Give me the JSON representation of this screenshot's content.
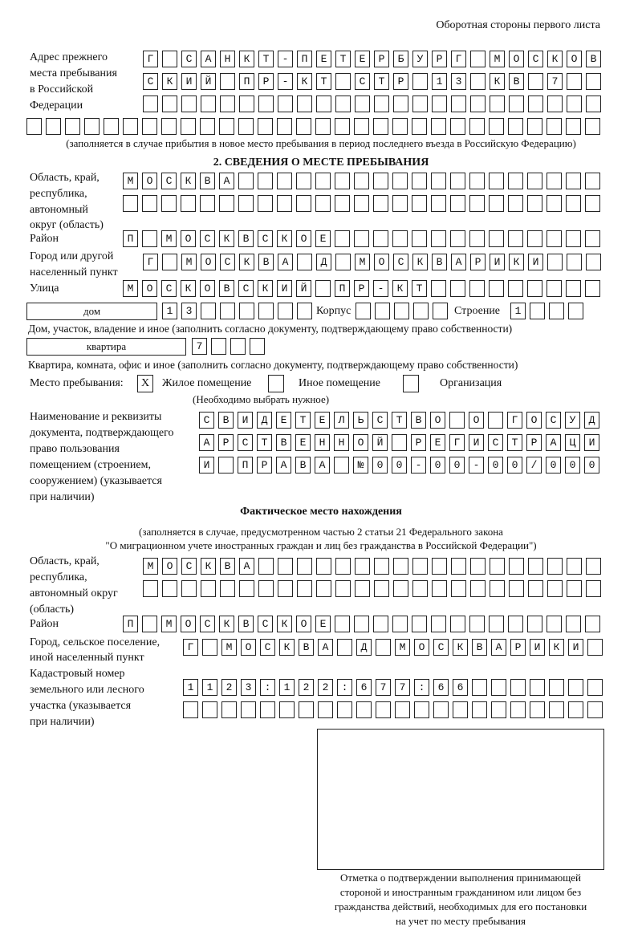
{
  "header": {
    "title": "Оборотная стороны первого листа"
  },
  "previous_address": {
    "label": [
      "Адрес прежнего",
      "места пребывания",
      "в Российской",
      "Федерации"
    ],
    "rows": [
      "Г САНКТ-ПЕТЕРБУРГ МОСКОВ",
      "СКИЙ ПР-КТ СТР 13 КВ 7  ",
      "                        ",
      "                              "
    ],
    "note": "(заполняется в случае прибытия в новое место пребывания в период последнего въезда в Российскую Федерацию)"
  },
  "section2": {
    "heading": "2. СВЕДЕНИЯ О МЕСТЕ ПРЕБЫВАНИЯ",
    "region_label": [
      "Область, край,",
      "республика,",
      "автономный",
      "округ (область)"
    ],
    "region_rows": [
      "МОСКВА                   ",
      "                         "
    ],
    "district_label": "Район",
    "district_row": "П МОСКВСКОЕ              ",
    "city_label": [
      "Город или другой",
      "населенный пункт"
    ],
    "city_row": "Г МОСКВА Д МОСКВАРИКИ   ",
    "street_label": "Улица",
    "street_row": "МОСКОВСКИЙ ПР-КТ         ",
    "house_type": "дом",
    "house_row": "13      ",
    "korpus_label": "Корпус",
    "korpus_row": "     ",
    "building_label": "Строение",
    "building_row": "1   ",
    "house_note": "Дом, участок, владение и иное (заполнить согласно документу, подтверждающему право собственности)",
    "flat_type": "квартира",
    "flat_row": "7   ",
    "flat_note": "Квартира, комната, офис и иное (заполнить согласно документу, подтверждающему право собственности)",
    "place_label": "Место пребывания:",
    "options": [
      {
        "label": "Жилое помещение",
        "mark": "X"
      },
      {
        "label": "Иное помещение",
        "mark": ""
      },
      {
        "label": "Организация",
        "mark": ""
      }
    ],
    "choose_note": "(Необходимо выбрать нужное)",
    "doc_label": [
      "Наименование и реквизиты",
      "документа, подтверждающего",
      "право пользования",
      "помещением (строением,",
      "сооружением) (указывается",
      "при наличии)"
    ],
    "doc_rows": [
      "СВИДЕТЕЛЬСТВО О ГОСУД",
      "АРСТВЕННОЙ РЕГИСТРАЦИ",
      "И ПРАВА №00-00-00/000"
    ]
  },
  "actual": {
    "heading": "Фактическое место нахождения",
    "note1": "(заполняется в случае, предусмотренном частью 2 статьи 21 Федерального закона",
    "note2": "\"О миграционном учете иностранных граждан и лиц без гражданства в Российской Федерации\")",
    "region_label": [
      "Область, край,",
      "республика,",
      "автономный округ",
      "(область)"
    ],
    "region_rows": [
      "МОСКВА                  ",
      "                        "
    ],
    "district_label": "Район",
    "district_row": "П МОСКВСКОЕ              ",
    "city_label": [
      "Город, сельское поселение,",
      "иной населенный пункт"
    ],
    "city_row": "Г МОСКВА Д МОСКВАРИКИ ",
    "cadastral_label": [
      "Кадастровый номер",
      "земельного или лесного",
      "участка (указывается",
      "при наличии)"
    ],
    "cadastral_rows": [
      "1123:122:677:66       ",
      "                      "
    ]
  },
  "confirmation": {
    "caption": [
      "Отметка о подтверждении выполнения принимающей",
      "стороной и иностранным гражданином или лицом без",
      "гражданства действий, необходимых для его постановки",
      "на учет по месту пребывания"
    ]
  }
}
